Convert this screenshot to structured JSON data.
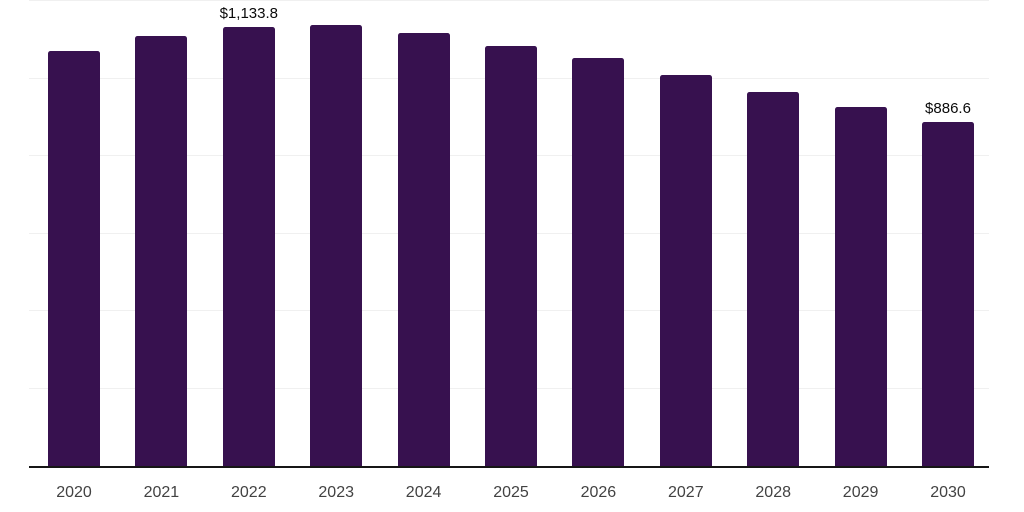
{
  "chart_data": {
    "type": "bar",
    "title": "",
    "xlabel": "",
    "ylabel": "",
    "categories": [
      "2020",
      "2021",
      "2022",
      "2023",
      "2024",
      "2025",
      "2026",
      "2027",
      "2028",
      "2029",
      "2030"
    ],
    "values": [
      1071,
      1109,
      1133.8,
      1138,
      1117,
      1083,
      1053,
      1010,
      966,
      926,
      886.6
    ],
    "data_labels": [
      "",
      "",
      "$1,133.8",
      "",
      "",
      "",
      "",
      "",
      "",
      "",
      "$886.6"
    ],
    "ylim": [
      0,
      1200
    ],
    "gridline_step": 200,
    "grid": "on",
    "legend": "none",
    "colors": {
      "bar": "#37114F",
      "gridline": "#f0f0f0",
      "axis": "#161616",
      "tick_label": "#424242",
      "data_label": "#0a0a0a",
      "background": "#ffffff"
    }
  }
}
